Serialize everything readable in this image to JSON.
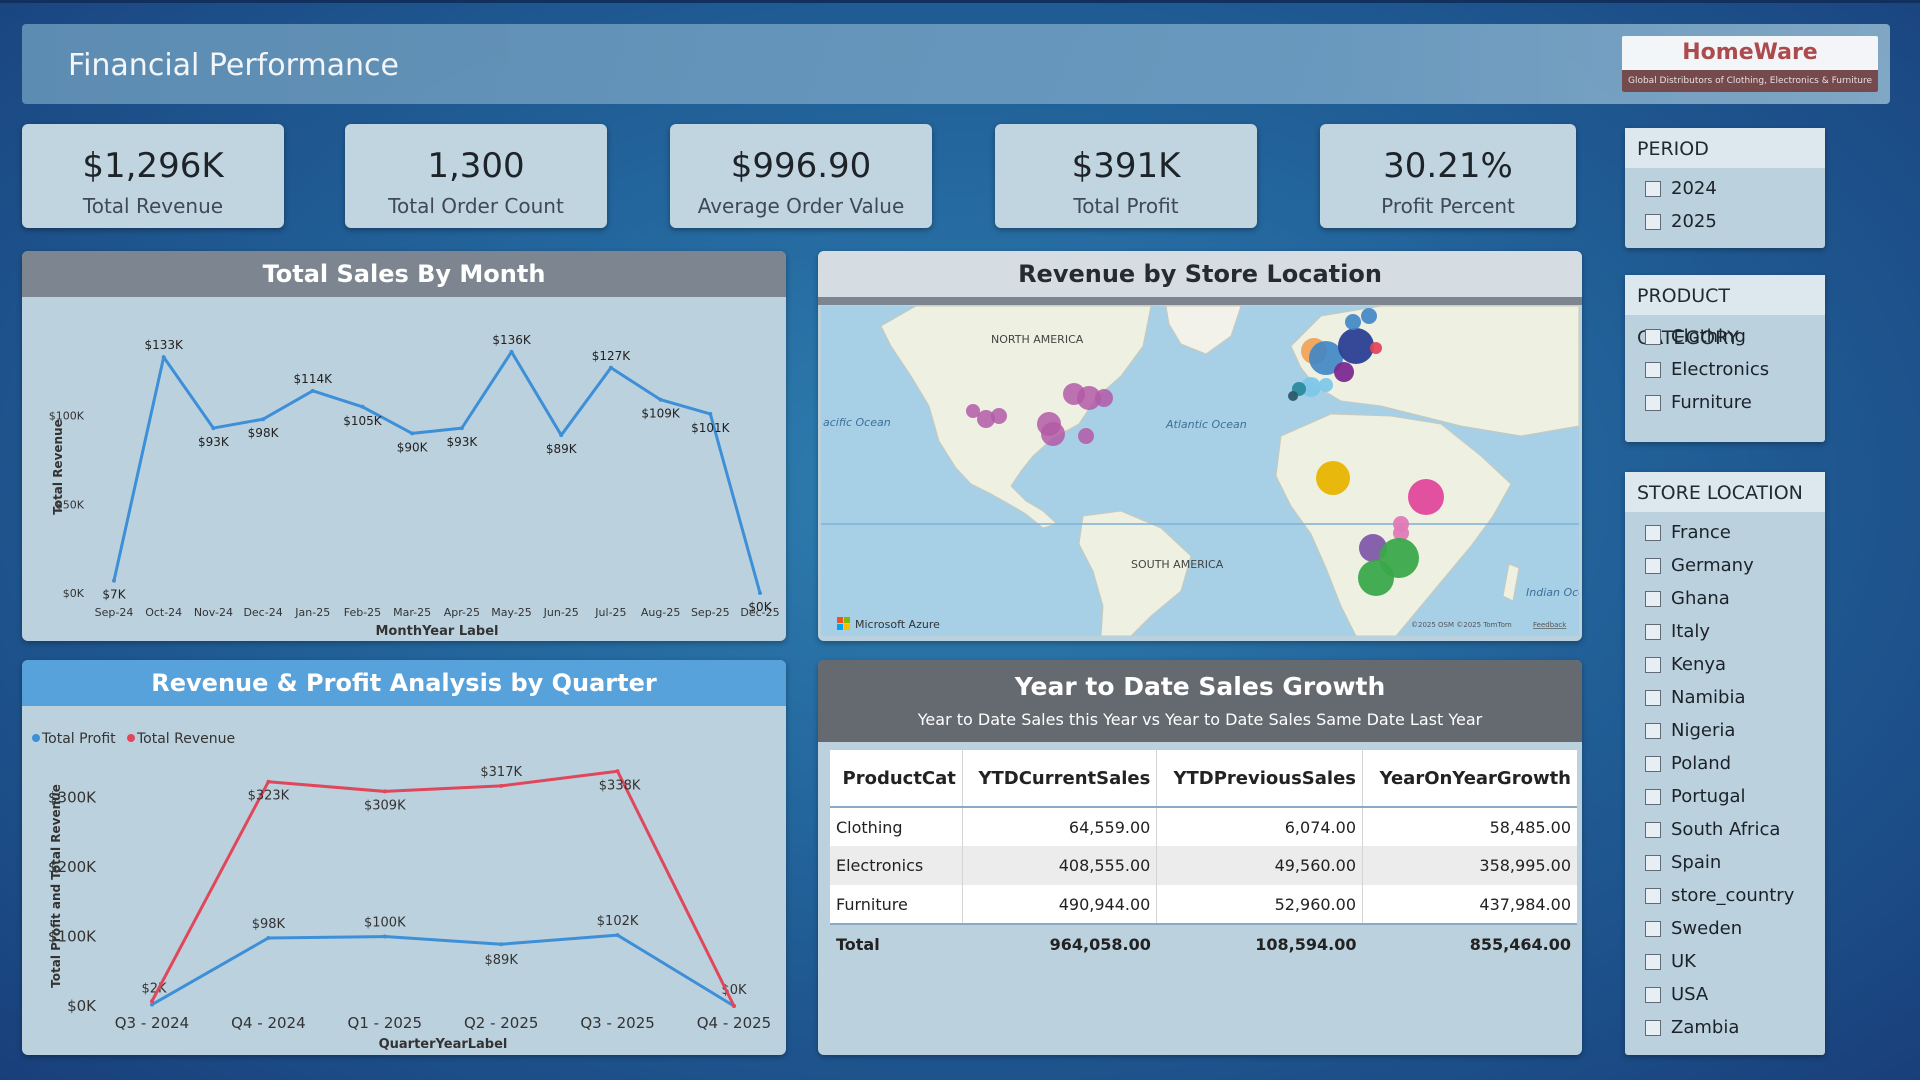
{
  "header": {
    "title": "Financial Performance"
  },
  "logo": {
    "name": "HomeWare",
    "tagline": "Global Distributors of Clothing, Electronics & Furniture"
  },
  "kpis": [
    {
      "value": "$1,296K",
      "label": "Total Revenue"
    },
    {
      "value": "1,300",
      "label": "Total Order Count"
    },
    {
      "value": "$996.90",
      "label": "Average Order Value"
    },
    {
      "value": "$391K",
      "label": "Total Profit"
    },
    {
      "value": "30.21%",
      "label": "Profit Percent"
    }
  ],
  "monthly": {
    "title": "Total Sales By Month",
    "ylabel": "Total Revenue",
    "xlabel": "MonthYear Label"
  },
  "quarterly": {
    "title": "Revenue & Profit Analysis by Quarter",
    "ylabel": "Total Profit and Total Revenue",
    "xlabel": "QuarterYearLabel",
    "legend_profit": "Total Profit",
    "legend_revenue": "Total Revenue"
  },
  "map": {
    "title": "Revenue by Store Location",
    "label_na": "NORTH AMERICA",
    "label_sa": "SOUTH AMERICA",
    "label_atlantic": "Atlantic Ocean",
    "label_pacific": "acific Ocean",
    "label_indian": "Indian Ocea",
    "credit": "Microsoft Azure",
    "attribution": "©2025 OSM ©2025 TomTom",
    "feedback": "Feedback"
  },
  "ytd": {
    "title": "Year to Date Sales Growth",
    "subtitle": "Year to Date Sales this Year vs Year to Date Sales Same Date Last Year",
    "columns": [
      "ProductCat",
      "YTDCurrentSales",
      "YTDPreviousSales",
      "YearOnYearGrowth"
    ],
    "rows": [
      [
        "Clothing",
        "64,559.00",
        "6,074.00",
        "58,485.00"
      ],
      [
        "Electronics",
        "408,555.00",
        "49,560.00",
        "358,995.00"
      ],
      [
        "Furniture",
        "490,944.00",
        "52,960.00",
        "437,984.00"
      ]
    ],
    "total": [
      "Total",
      "964,058.00",
      "108,594.00",
      "855,464.00"
    ]
  },
  "slicers": {
    "period": {
      "title": "PERIOD",
      "items": [
        "2024",
        "2025"
      ]
    },
    "category": {
      "title": "PRODUCT CATEGORY",
      "items": [
        "Clothing",
        "Electronics",
        "Furniture"
      ]
    },
    "location": {
      "title": "STORE LOCATION",
      "items": [
        "France",
        "Germany",
        "Ghana",
        "Italy",
        "Kenya",
        "Namibia",
        "Nigeria",
        "Poland",
        "Portugal",
        "South Africa",
        "Spain",
        "store_country",
        "Sweden",
        "UK",
        "USA",
        "Zambia"
      ]
    }
  },
  "colors": {
    "line_blue": "#3d8fd8",
    "line_red": "#e0475a",
    "quarter_header": "#58a2db",
    "grey_header": "#7d8690"
  },
  "chart_data": [
    {
      "type": "line",
      "title": "Total Sales By Month",
      "xlabel": "MonthYear Label",
      "ylabel": "Total Revenue",
      "categories": [
        "Sep-24",
        "Oct-24",
        "Nov-24",
        "Dec-24",
        "Jan-25",
        "Feb-25",
        "Mar-25",
        "Apr-25",
        "May-25",
        "Jun-25",
        "Jul-25",
        "Aug-25",
        "Sep-25",
        "Dec-25"
      ],
      "values": [
        7,
        133,
        93,
        98,
        114,
        105,
        90,
        93,
        136,
        89,
        127,
        109,
        101,
        0
      ],
      "data_labels": [
        "$7K",
        "$133K",
        "$93K",
        "$98K",
        "$114K",
        "$105K",
        "$90K",
        "$93K",
        "$136K",
        "$89K",
        "$127K",
        "$109K",
        "$101K",
        "$0K"
      ],
      "yticks": [
        0,
        50,
        100
      ],
      "ytick_labels": [
        "$0K",
        "$50K",
        "$100K"
      ],
      "ylim": [
        0,
        150
      ],
      "grid": false
    },
    {
      "type": "line",
      "title": "Revenue & Profit Analysis by Quarter",
      "xlabel": "QuarterYearLabel",
      "ylabel": "Total Profit and Total Revenue",
      "categories": [
        "Q3 - 2024",
        "Q4 - 2024",
        "Q1 - 2025",
        "Q2 - 2025",
        "Q3 - 2025",
        "Q4 - 2025"
      ],
      "series": [
        {
          "name": "Total Profit",
          "values": [
            2,
            98,
            100,
            89,
            102,
            0
          ],
          "data_labels": [
            "$2K",
            "$98K",
            "$100K",
            "$89K",
            "$102K",
            "$0K"
          ]
        },
        {
          "name": "Total Revenue",
          "values": [
            7,
            323,
            309,
            317,
            338,
            0
          ],
          "data_labels": [
            "",
            "$323K",
            "$309K",
            "$317K",
            "$338K",
            ""
          ]
        }
      ],
      "yticks": [
        0,
        100,
        200,
        300
      ],
      "ytick_labels": [
        "$0K",
        "$100K",
        "$200K",
        "$300K"
      ],
      "ylim": [
        0,
        360
      ],
      "legend": "top-left",
      "grid": false
    }
  ]
}
